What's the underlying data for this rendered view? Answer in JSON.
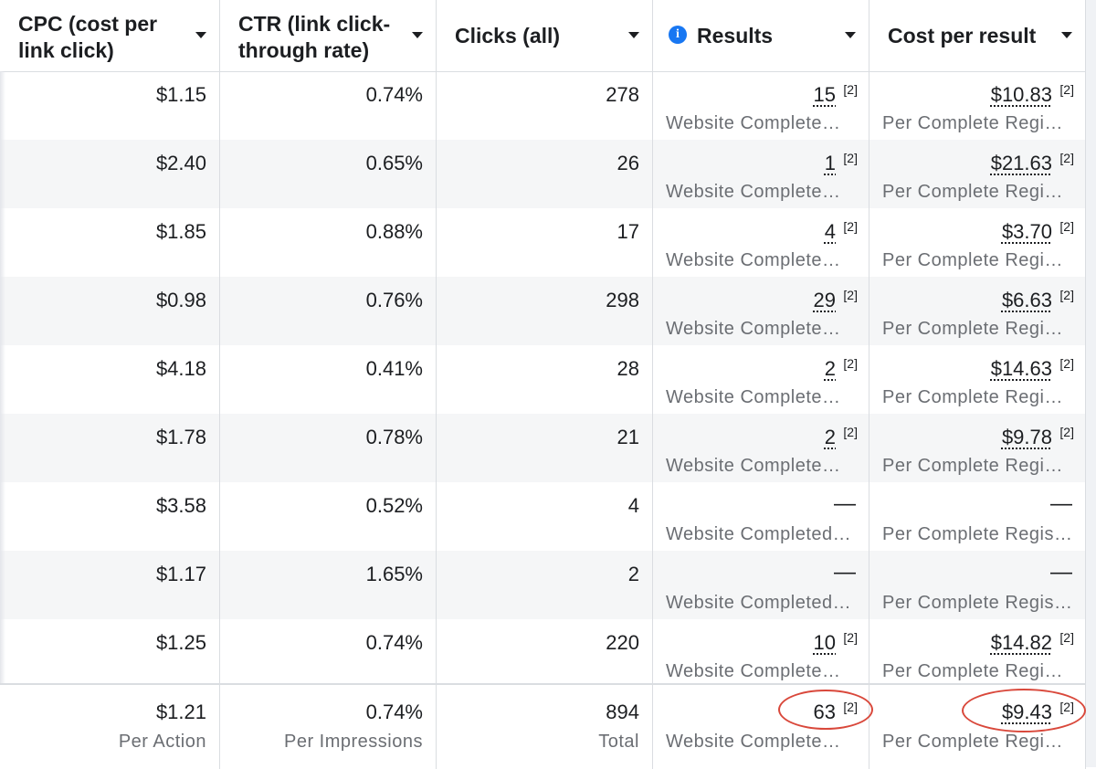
{
  "columns": [
    {
      "label": "CPC (cost per\nlink click)",
      "line1": "CPC (cost per",
      "line2": "link click)"
    },
    {
      "label": "CTR (link click-\nthrough rate)",
      "line1": "CTR (link click-",
      "line2": "through rate)"
    },
    {
      "label": "Clicks (all)"
    },
    {
      "label": "Results"
    },
    {
      "label": "Cost per result"
    }
  ],
  "rows": [
    {
      "cpc": "$1.15",
      "ctr": "0.74%",
      "clicks": "278",
      "results": "15",
      "results_sub": "Website Complete…",
      "cpr": "$10.83",
      "cpr_sub": "Per Complete Regi…"
    },
    {
      "cpc": "$2.40",
      "ctr": "0.65%",
      "clicks": "26",
      "results": "1",
      "results_sub": "Website Complete…",
      "cpr": "$21.63",
      "cpr_sub": "Per Complete Regi…"
    },
    {
      "cpc": "$1.85",
      "ctr": "0.88%",
      "clicks": "17",
      "results": "4",
      "results_sub": "Website Complete…",
      "cpr": "$3.70",
      "cpr_sub": "Per Complete Regi…"
    },
    {
      "cpc": "$0.98",
      "ctr": "0.76%",
      "clicks": "298",
      "results": "29",
      "results_sub": "Website Complete…",
      "cpr": "$6.63",
      "cpr_sub": "Per Complete Regi…"
    },
    {
      "cpc": "$4.18",
      "ctr": "0.41%",
      "clicks": "28",
      "results": "2",
      "results_sub": "Website Complete…",
      "cpr": "$14.63",
      "cpr_sub": "Per Complete Regi…"
    },
    {
      "cpc": "$1.78",
      "ctr": "0.78%",
      "clicks": "21",
      "results": "2",
      "results_sub": "Website Complete…",
      "cpr": "$9.78",
      "cpr_sub": "Per Complete Regi…"
    },
    {
      "cpc": "$3.58",
      "ctr": "0.52%",
      "clicks": "4",
      "results": "—",
      "results_sub": "Website Completed …",
      "cpr": "—",
      "cpr_sub": "Per Complete Registr…"
    },
    {
      "cpc": "$1.17",
      "ctr": "1.65%",
      "clicks": "2",
      "results": "—",
      "results_sub": "Website Completed …",
      "cpr": "—",
      "cpr_sub": "Per Complete Registr…"
    },
    {
      "cpc": "$1.25",
      "ctr": "0.74%",
      "clicks": "220",
      "results": "10",
      "results_sub": "Website Complete…",
      "cpr": "$14.82",
      "cpr_sub": "Per Complete Regi…"
    }
  ],
  "footnote_marker": "[2]",
  "totals": {
    "cpc": "$1.21",
    "cpc_sub": "Per Action",
    "ctr": "0.74%",
    "ctr_sub": "Per Impressions",
    "clicks": "894",
    "clicks_sub": "Total",
    "results": "63",
    "results_sub": "Website Complete…",
    "cpr": "$9.43",
    "cpr_sub": "Per Complete Regi…"
  },
  "colors": {
    "info_icon": "#1877f2",
    "highlight_circle": "#d9483b",
    "alt_row": "#f5f6f7"
  },
  "icons": {
    "info": "info-icon",
    "sort": "caret-down-icon"
  }
}
